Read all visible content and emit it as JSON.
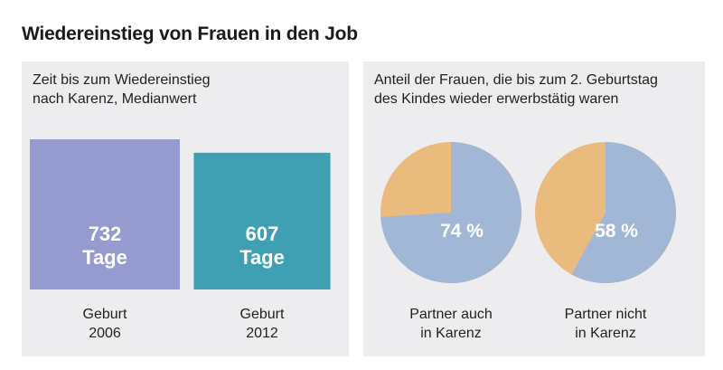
{
  "title": "Wiedereinstieg von Frauen in den Job",
  "left_panel": {
    "heading_lines": [
      "Zeit bis zum Wiedereinstieg",
      "nach Karenz, Medianwert"
    ]
  },
  "right_panel": {
    "heading_lines": [
      "Anteil der Frauen, die bis zum 2. Geburtstag",
      "des Kindes wieder erwerbstätig waren"
    ]
  },
  "colors": {
    "bar_2006": "#959bcf",
    "bar_2012": "#3fa0b3",
    "pie_primary": "#a2b7d5",
    "pie_rest": "#e9bb7d",
    "panel_bg": "#ededf0"
  },
  "chart_data": [
    {
      "type": "bar",
      "categories": [
        [
          "Geburt",
          "2006"
        ],
        [
          "Geburt",
          "2012"
        ]
      ],
      "values": [
        732,
        607
      ],
      "value_labels": [
        [
          "732",
          "Tage"
        ],
        [
          "607",
          "Tage"
        ]
      ],
      "unit": "Tage"
    },
    {
      "type": "pie",
      "pies": [
        {
          "value": 74,
          "label": "74 %",
          "caption": [
            "Partner auch",
            "in Karenz"
          ]
        },
        {
          "value": 58,
          "label": "58 %",
          "caption": [
            "Partner nicht",
            "in Karenz"
          ]
        }
      ]
    }
  ]
}
